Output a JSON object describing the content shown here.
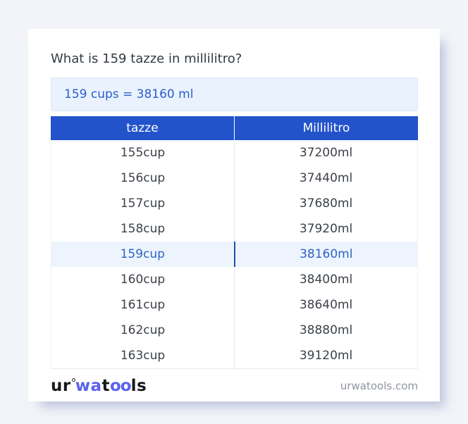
{
  "page": {
    "title": "What is 159 tazze in millilitro?"
  },
  "result": {
    "text": "159 cups = 38160 ml"
  },
  "table": {
    "headers": [
      "tazze",
      "Millilitro"
    ],
    "rows": [
      [
        "155cup",
        "37200ml"
      ],
      [
        "156cup",
        "37440ml"
      ],
      [
        "157cup",
        "37680ml"
      ],
      [
        "158cup",
        "37920ml"
      ],
      [
        "159cup",
        "38160ml"
      ],
      [
        "160cup",
        "38400ml"
      ],
      [
        "161cup",
        "38640ml"
      ],
      [
        "162cup",
        "38880ml"
      ],
      [
        "163cup",
        "39120ml"
      ]
    ],
    "highlighted_row_index": 4
  },
  "footer": {
    "logo": {
      "part1": "ur",
      "part2": "wa",
      "part3": "t",
      "part4": "oo",
      "part5": "ls"
    },
    "site": "urwatools.com"
  },
  "colors": {
    "accent_blue": "#2353cb",
    "highlight_bg": "#edf4fd",
    "highlight_text": "#2d63c5",
    "result_box_bg": "#eaf2fd",
    "result_text": "#2b5fc8",
    "logo_accent": "#5b63ee",
    "page_bg": "#f2f4f9"
  }
}
